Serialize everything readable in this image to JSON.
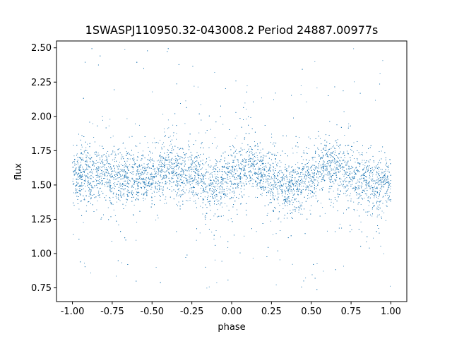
{
  "chart_data": {
    "type": "scatter",
    "title": "1SWASPJ110950.32-043008.2 Period 24887.00977s",
    "xlabel": "phase",
    "ylabel": "flux",
    "xlim": [
      -1.1,
      1.1
    ],
    "ylim": [
      0.65,
      2.55
    ],
    "xticks": [
      "-1.00",
      "-0.75",
      "-0.50",
      "-0.25",
      "0.00",
      "0.25",
      "0.50",
      "0.75",
      "1.00"
    ],
    "yticks": [
      "0.75",
      "1.00",
      "1.25",
      "1.50",
      "1.75",
      "2.00",
      "2.25",
      "2.50"
    ],
    "grid": false,
    "legend": "none",
    "marker_color": "#1f77b4",
    "phase_range": [
      -1.0,
      1.0
    ],
    "curve": {
      "description_points_phase": [
        -1.0,
        -0.75,
        -0.5,
        -0.4,
        -0.25,
        -0.1,
        0.0,
        0.1,
        0.25,
        0.35,
        0.5,
        0.6,
        0.75,
        0.9,
        1.0
      ],
      "description_points_flux": [
        1.58,
        1.57,
        1.55,
        1.64,
        1.57,
        1.49,
        1.55,
        1.63,
        1.55,
        1.49,
        1.55,
        1.64,
        1.57,
        1.5,
        1.52
      ]
    }
  }
}
